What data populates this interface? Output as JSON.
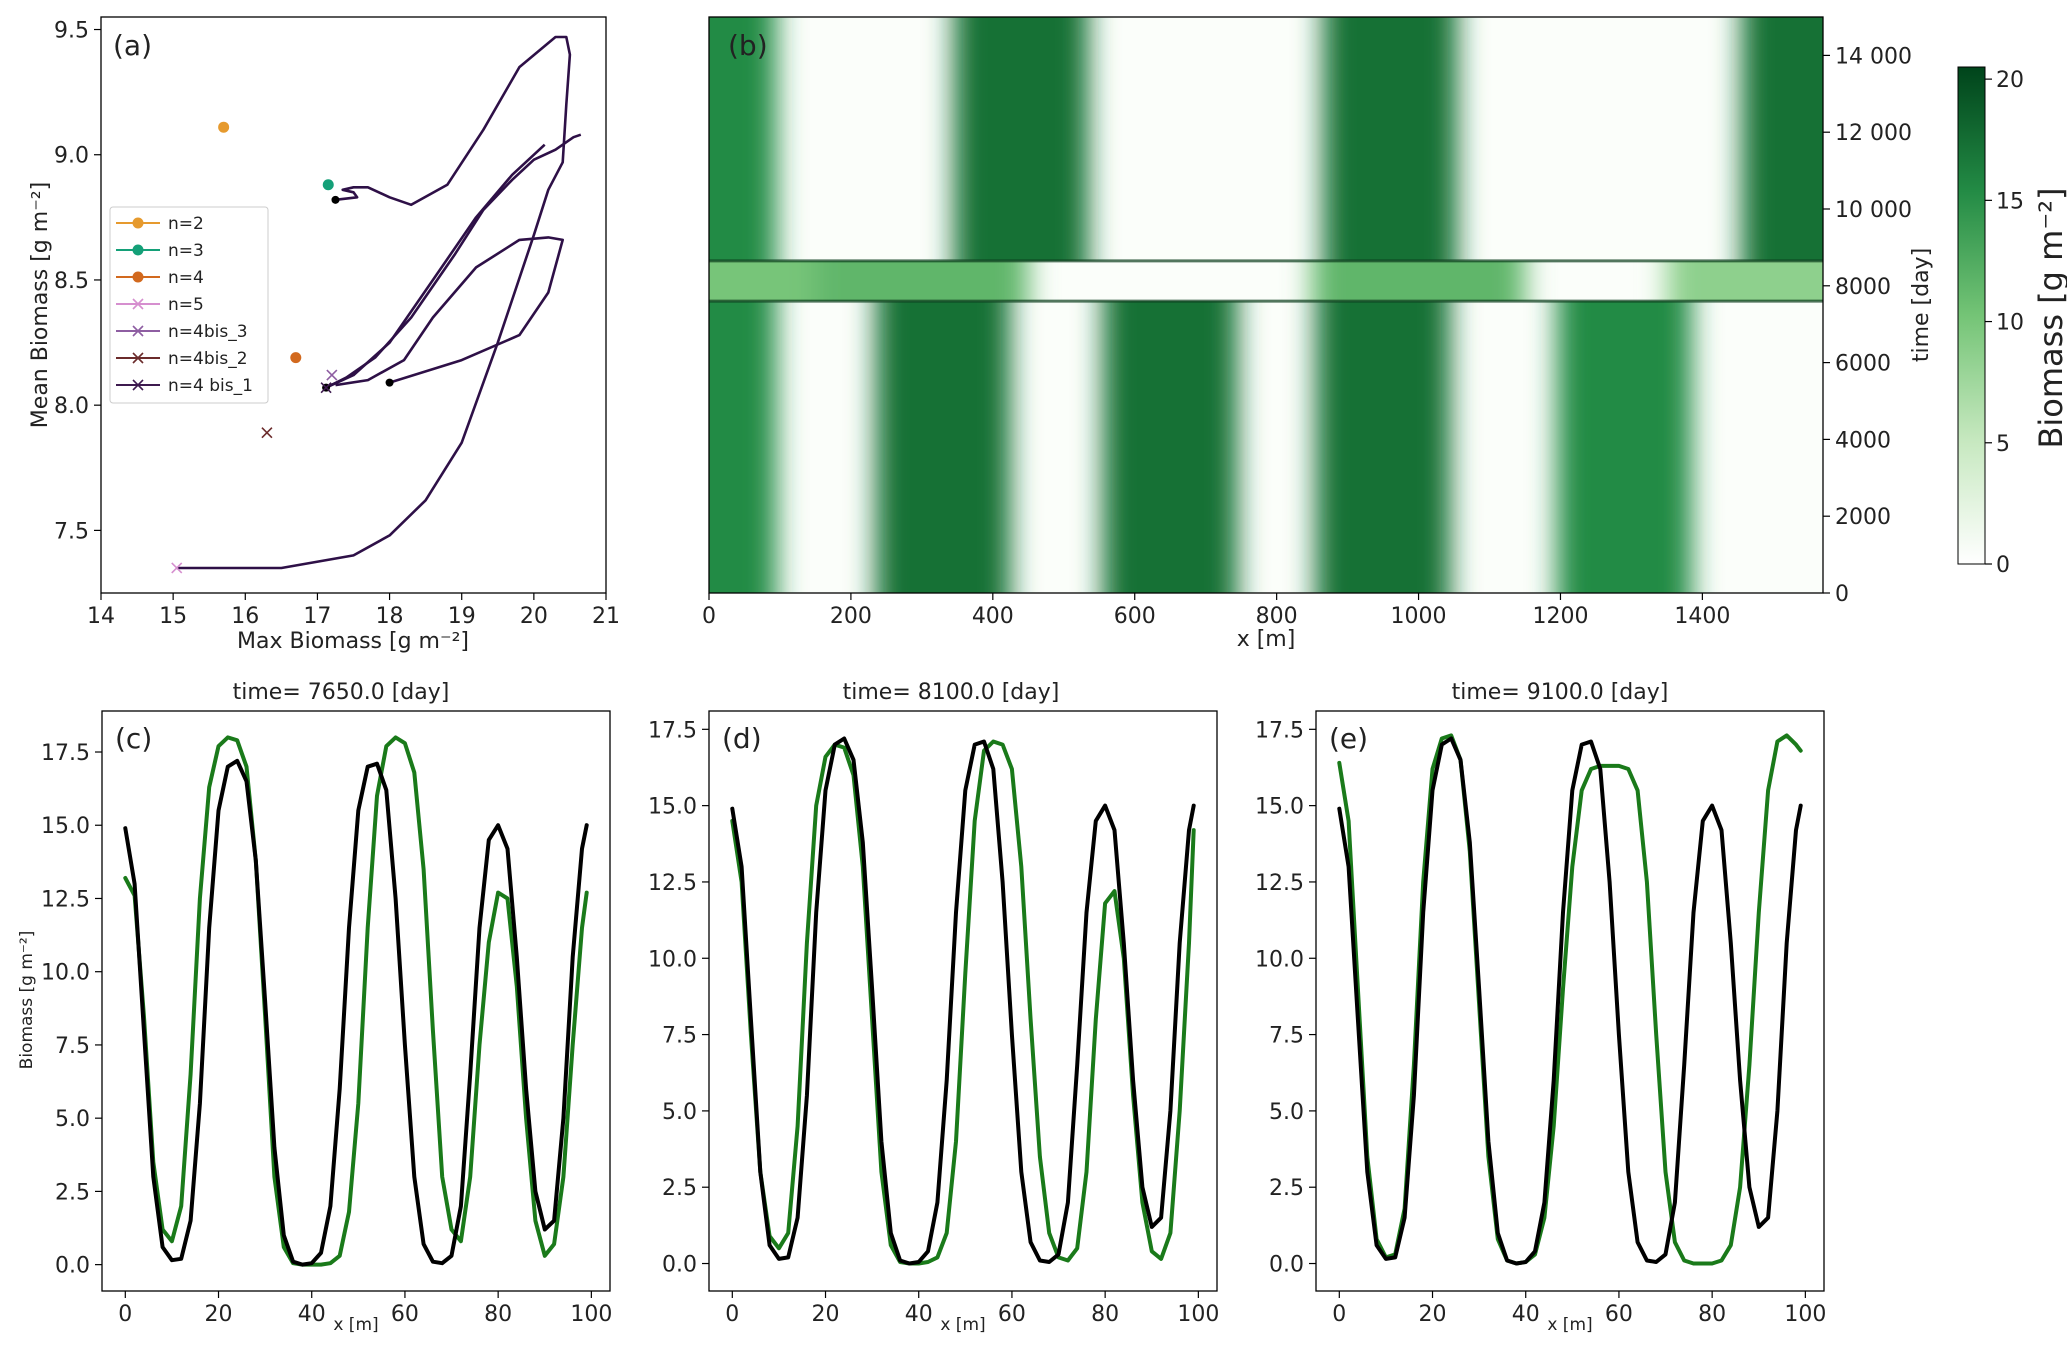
{
  "chart_data": [
    {
      "panel": "(a)",
      "type": "scatter",
      "xlabel": "Max Biomass [g m⁻²]",
      "ylabel": "Mean Biomass [g m⁻²]",
      "xlim": [
        14,
        21
      ],
      "ylim": [
        7.25,
        9.55
      ],
      "xticks": [
        14,
        15,
        16,
        17,
        18,
        19,
        20,
        21
      ],
      "yticks": [
        7.5,
        8.0,
        8.5,
        9.0,
        9.5
      ],
      "legend_position": "center-left",
      "series": [
        {
          "name": "n=2",
          "marker": "dot",
          "color": "#e69a2e",
          "points": [
            [
              15.7,
              9.11
            ]
          ]
        },
        {
          "name": "n=3",
          "marker": "dot",
          "color": "#14a078",
          "points": [
            [
              17.15,
              8.88
            ]
          ]
        },
        {
          "name": "n=4",
          "marker": "dot",
          "color": "#d2691e",
          "points": [
            [
              16.7,
              8.19
            ]
          ]
        },
        {
          "name": "n=5",
          "marker": "x",
          "color": "#d68fcf",
          "points": [
            [
              15.05,
              7.35
            ]
          ]
        },
        {
          "name": "n=4bis_3",
          "marker": "x",
          "color": "#8e5ea2",
          "points": [
            [
              17.2,
              8.12
            ]
          ]
        },
        {
          "name": "n=4bis_2",
          "marker": "x",
          "color": "#6b2b2b",
          "points": [
            [
              16.3,
              7.89
            ]
          ]
        },
        {
          "name": "n=4 bis_1",
          "marker": "x",
          "color": "#3d1a4f",
          "points": [
            [
              17.12,
              8.07
            ]
          ]
        }
      ],
      "trajectories": [
        {
          "color": "#2e1047",
          "points": [
            [
              15.05,
              7.35
            ],
            [
              16.5,
              7.35
            ],
            [
              17.5,
              7.4
            ],
            [
              18.0,
              7.48
            ],
            [
              18.5,
              7.62
            ],
            [
              19.0,
              7.85
            ],
            [
              19.5,
              8.25
            ],
            [
              20.0,
              8.68
            ],
            [
              20.2,
              8.86
            ],
            [
              20.4,
              8.97
            ],
            [
              20.45,
              9.2
            ],
            [
              20.5,
              9.4
            ],
            [
              20.45,
              9.47
            ],
            [
              20.3,
              9.47
            ],
            [
              19.8,
              9.35
            ],
            [
              19.3,
              9.1
            ],
            [
              18.8,
              8.88
            ],
            [
              18.3,
              8.8
            ],
            [
              18.0,
              8.83
            ],
            [
              17.7,
              8.87
            ],
            [
              17.5,
              8.87
            ],
            [
              17.35,
              8.86
            ],
            [
              17.5,
              8.85
            ],
            [
              17.55,
              8.83
            ],
            [
              17.25,
              8.82
            ]
          ]
        },
        {
          "color": "#2e1047",
          "points": [
            [
              17.12,
              8.07
            ],
            [
              17.4,
              8.11
            ],
            [
              17.8,
              8.19
            ],
            [
              18.3,
              8.35
            ],
            [
              18.9,
              8.6
            ],
            [
              19.3,
              8.78
            ],
            [
              19.7,
              8.9
            ],
            [
              20.0,
              8.98
            ],
            [
              20.3,
              9.02
            ],
            [
              20.45,
              9.05
            ],
            [
              20.55,
              9.07
            ],
            [
              20.65,
              9.08
            ]
          ]
        },
        {
          "color": "#2e1047",
          "points": [
            [
              17.12,
              8.07
            ],
            [
              17.5,
              8.12
            ],
            [
              18.0,
              8.25
            ],
            [
              18.6,
              8.5
            ],
            [
              19.2,
              8.75
            ],
            [
              19.7,
              8.92
            ],
            [
              20.15,
              9.04
            ]
          ]
        },
        {
          "color": "#2e1047",
          "points": [
            [
              18.0,
              8.09
            ],
            [
              19.0,
              8.18
            ],
            [
              19.8,
              8.28
            ],
            [
              20.2,
              8.45
            ],
            [
              20.4,
              8.66
            ],
            [
              20.2,
              8.67
            ],
            [
              19.8,
              8.66
            ],
            [
              19.2,
              8.55
            ],
            [
              18.6,
              8.35
            ],
            [
              18.2,
              8.18
            ],
            [
              17.7,
              8.1
            ],
            [
              17.25,
              8.08
            ]
          ]
        }
      ]
    },
    {
      "panel": "(b)",
      "type": "heatmap",
      "xlabel": "x [m]",
      "ylabel": "time [day]",
      "xlim": [
        0,
        1570
      ],
      "ylim": [
        0,
        15000
      ],
      "xticks": [
        0,
        200,
        400,
        600,
        800,
        1000,
        1200,
        1400
      ],
      "yticks": [
        0,
        2000,
        4000,
        6000,
        8000,
        10000,
        12000,
        14000
      ],
      "ytick_labels": [
        "0",
        "2000",
        "4000",
        "6000",
        "8000",
        "10 000",
        "12 000",
        "14 000"
      ],
      "colorbar": {
        "label": "Biomass [g m⁻²]",
        "min": 0,
        "max": 20.5,
        "ticks": [
          0,
          5,
          10,
          15,
          20
        ]
      },
      "bands_lower": [
        [
          0,
          15
        ],
        [
          330,
          17
        ],
        [
          650,
          17
        ],
        [
          950,
          17
        ],
        [
          1290,
          15
        ]
      ],
      "bands_upper": [
        [
          0,
          15
        ],
        [
          440,
          17
        ],
        [
          960,
          17
        ],
        [
          1550,
          17
        ]
      ],
      "band_halfwidth_m": 95,
      "transition_days": [
        7600,
        8650
      ]
    },
    {
      "panel": "(c)",
      "type": "line",
      "title": "time= 7650.0 [day]",
      "xlabel": "x [m]",
      "ylabel": "Biomass [g m⁻²]",
      "xlim": [
        -5,
        104
      ],
      "ylim": [
        -0.9,
        18.9
      ],
      "xticks": [
        0,
        20,
        40,
        60,
        80,
        100
      ],
      "yticks": [
        0.0,
        2.5,
        5.0,
        7.5,
        10.0,
        12.5,
        15.0,
        17.5
      ],
      "series": [
        {
          "color": "#1a7a1a",
          "x": [
            0,
            2,
            4,
            6,
            8,
            10,
            12,
            14,
            16,
            18,
            20,
            22,
            24,
            26,
            28,
            30,
            32,
            34,
            36,
            38,
            40,
            42,
            44,
            46,
            48,
            50,
            52,
            54,
            56,
            58,
            60,
            62,
            64,
            66,
            68,
            70,
            72,
            74,
            76,
            78,
            80,
            82,
            84,
            86,
            88,
            90,
            92,
            94,
            96,
            98,
            99
          ],
          "y": [
            13.2,
            12.6,
            8.5,
            3.5,
            1.2,
            0.8,
            2.0,
            6.5,
            12.5,
            16.3,
            17.7,
            18.0,
            17.9,
            17.0,
            13.8,
            8.5,
            3.0,
            0.6,
            0.05,
            0.0,
            0.0,
            0.0,
            0.05,
            0.3,
            1.8,
            5.5,
            11.5,
            16.0,
            17.7,
            18.0,
            17.8,
            16.8,
            13.5,
            8.0,
            3.0,
            1.2,
            0.8,
            3.0,
            7.5,
            11.0,
            12.7,
            12.5,
            9.5,
            5.0,
            1.5,
            0.3,
            0.7,
            3.0,
            7.5,
            11.5,
            12.7
          ]
        },
        {
          "color": "#000000",
          "x": [
            0,
            2,
            4,
            6,
            8,
            10,
            12,
            14,
            16,
            18,
            20,
            22,
            24,
            26,
            28,
            30,
            32,
            34,
            36,
            38,
            40,
            42,
            44,
            46,
            48,
            50,
            52,
            54,
            56,
            58,
            60,
            62,
            64,
            66,
            68,
            70,
            72,
            74,
            76,
            78,
            80,
            82,
            84,
            86,
            88,
            90,
            92,
            94,
            96,
            98,
            99
          ],
          "y": [
            14.9,
            13.0,
            8.0,
            3.0,
            0.6,
            0.15,
            0.2,
            1.5,
            5.5,
            11.5,
            15.5,
            17.0,
            17.2,
            16.5,
            13.8,
            9.0,
            4.0,
            1.0,
            0.1,
            0.0,
            0.05,
            0.4,
            2.0,
            6.0,
            11.5,
            15.5,
            17.0,
            17.1,
            16.2,
            12.5,
            7.5,
            3.0,
            0.7,
            0.1,
            0.05,
            0.3,
            2.0,
            6.5,
            11.5,
            14.5,
            15.0,
            14.2,
            10.5,
            6.0,
            2.5,
            1.2,
            1.5,
            5.0,
            10.5,
            14.2,
            15.0
          ]
        }
      ]
    },
    {
      "panel": "(d)",
      "type": "line",
      "title": "time= 8100.0 [day]",
      "xlabel": "x [m]",
      "xlim": [
        -5,
        104
      ],
      "ylim": [
        -0.9,
        18.1
      ],
      "xticks": [
        0,
        20,
        40,
        60,
        80,
        100
      ],
      "yticks": [
        0.0,
        2.5,
        5.0,
        7.5,
        10.0,
        12.5,
        15.0,
        17.5
      ],
      "series": [
        {
          "color": "#1a7a1a",
          "x": [
            0,
            2,
            4,
            6,
            8,
            10,
            12,
            14,
            16,
            18,
            20,
            22,
            24,
            26,
            28,
            30,
            32,
            34,
            36,
            38,
            40,
            42,
            44,
            46,
            48,
            50,
            52,
            54,
            56,
            58,
            60,
            62,
            64,
            66,
            68,
            70,
            72,
            74,
            76,
            78,
            80,
            82,
            84,
            86,
            88,
            90,
            92,
            94,
            96,
            98,
            99
          ],
          "y": [
            14.5,
            12.5,
            7.5,
            3.0,
            0.9,
            0.5,
            1.0,
            4.5,
            10.5,
            15.0,
            16.6,
            17.0,
            16.9,
            16.0,
            13.0,
            8.0,
            3.0,
            0.6,
            0.05,
            0.0,
            0.0,
            0.05,
            0.2,
            1.0,
            4.0,
            9.5,
            14.5,
            16.8,
            17.1,
            17.0,
            16.2,
            13.0,
            8.0,
            3.5,
            1.0,
            0.2,
            0.1,
            0.5,
            3.0,
            8.0,
            11.8,
            12.2,
            10.0,
            5.5,
            2.0,
            0.4,
            0.15,
            1.0,
            5.0,
            10.5,
            14.2
          ]
        },
        {
          "color": "#000000",
          "x": [
            0,
            2,
            4,
            6,
            8,
            10,
            12,
            14,
            16,
            18,
            20,
            22,
            24,
            26,
            28,
            30,
            32,
            34,
            36,
            38,
            40,
            42,
            44,
            46,
            48,
            50,
            52,
            54,
            56,
            58,
            60,
            62,
            64,
            66,
            68,
            70,
            72,
            74,
            76,
            78,
            80,
            82,
            84,
            86,
            88,
            90,
            92,
            94,
            96,
            98,
            99
          ],
          "y": [
            14.9,
            13.0,
            8.0,
            3.0,
            0.6,
            0.15,
            0.2,
            1.5,
            5.5,
            11.5,
            15.5,
            17.0,
            17.2,
            16.5,
            13.8,
            9.0,
            4.0,
            1.0,
            0.1,
            0.0,
            0.05,
            0.4,
            2.0,
            6.0,
            11.5,
            15.5,
            17.0,
            17.1,
            16.2,
            12.5,
            7.5,
            3.0,
            0.7,
            0.1,
            0.05,
            0.3,
            2.0,
            6.5,
            11.5,
            14.5,
            15.0,
            14.2,
            10.5,
            6.0,
            2.5,
            1.2,
            1.5,
            5.0,
            10.5,
            14.2,
            15.0
          ]
        }
      ]
    },
    {
      "panel": "(e)",
      "type": "line",
      "title": "time= 9100.0 [day]",
      "xlabel": "x [m]",
      "xlim": [
        -5,
        104
      ],
      "ylim": [
        -0.9,
        18.1
      ],
      "xticks": [
        0,
        20,
        40,
        60,
        80,
        100
      ],
      "yticks": [
        0.0,
        2.5,
        5.0,
        7.5,
        10.0,
        12.5,
        15.0,
        17.5
      ],
      "series": [
        {
          "color": "#1a7a1a",
          "x": [
            0,
            2,
            4,
            6,
            8,
            10,
            12,
            14,
            16,
            18,
            20,
            22,
            24,
            26,
            28,
            30,
            32,
            34,
            36,
            38,
            40,
            42,
            44,
            46,
            48,
            50,
            52,
            54,
            56,
            58,
            60,
            62,
            64,
            66,
            68,
            70,
            72,
            74,
            76,
            78,
            80,
            82,
            84,
            86,
            88,
            90,
            92,
            94,
            96,
            98,
            99
          ],
          "y": [
            16.4,
            14.5,
            9.0,
            3.5,
            0.8,
            0.2,
            0.3,
            1.8,
            6.5,
            12.5,
            16.2,
            17.2,
            17.3,
            16.5,
            13.5,
            8.5,
            3.5,
            0.8,
            0.1,
            0.0,
            0.05,
            0.3,
            1.5,
            4.5,
            9.0,
            13.0,
            15.5,
            16.2,
            16.3,
            16.3,
            16.3,
            16.2,
            15.5,
            12.5,
            7.5,
            3.0,
            0.7,
            0.1,
            0.0,
            0.0,
            0.0,
            0.1,
            0.6,
            2.5,
            6.5,
            11.5,
            15.5,
            17.1,
            17.3,
            17.0,
            16.8
          ]
        },
        {
          "color": "#000000",
          "x": [
            0,
            2,
            4,
            6,
            8,
            10,
            12,
            14,
            16,
            18,
            20,
            22,
            24,
            26,
            28,
            30,
            32,
            34,
            36,
            38,
            40,
            42,
            44,
            46,
            48,
            50,
            52,
            54,
            56,
            58,
            60,
            62,
            64,
            66,
            68,
            70,
            72,
            74,
            76,
            78,
            80,
            82,
            84,
            86,
            88,
            90,
            92,
            94,
            96,
            98,
            99
          ],
          "y": [
            14.9,
            13.0,
            8.0,
            3.0,
            0.6,
            0.15,
            0.2,
            1.5,
            5.5,
            11.5,
            15.5,
            17.0,
            17.2,
            16.5,
            13.8,
            9.0,
            4.0,
            1.0,
            0.1,
            0.0,
            0.05,
            0.4,
            2.0,
            6.0,
            11.5,
            15.5,
            17.0,
            17.1,
            16.2,
            12.5,
            7.5,
            3.0,
            0.7,
            0.1,
            0.05,
            0.3,
            2.0,
            6.5,
            11.5,
            14.5,
            15.0,
            14.2,
            10.5,
            6.0,
            2.5,
            1.2,
            1.5,
            5.0,
            10.5,
            14.2,
            15.0
          ]
        }
      ]
    }
  ]
}
